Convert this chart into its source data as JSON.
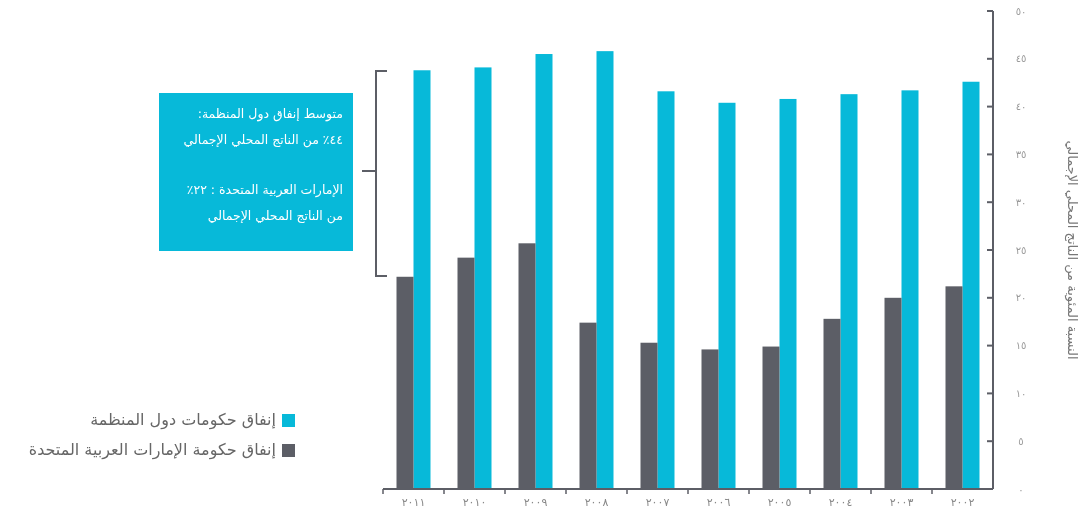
{
  "chart_data": {
    "type": "bar",
    "ylabel": "النسبة المئوية من الناتج المحلي الإجمالي",
    "categories": [
      "٢٠١١",
      "٢٠١٠",
      "٢٠٠٩",
      "٢٠٠٨",
      "٢٠٠٧",
      "٢٠٠٦",
      "٢٠٠٥",
      "٢٠٠٤",
      "٢٠٠٣",
      "٢٠٠٢"
    ],
    "series": [
      {
        "name": "إنفاق حكومات دول المنظمة",
        "color": "#07b9d9",
        "values": [
          43.8,
          44.1,
          45.5,
          45.8,
          41.6,
          40.4,
          40.8,
          41.3,
          41.7,
          42.6
        ]
      },
      {
        "name": "إنفاق حكومة الإمارات العربية المتحدة",
        "color": "#5c5e66",
        "values": [
          22.2,
          24.2,
          25.7,
          17.4,
          15.3,
          14.6,
          14.9,
          17.8,
          20.0,
          21.2
        ]
      }
    ],
    "ylim": [
      0,
      50
    ],
    "yticks": [
      {
        "value": 0,
        "label": "٠"
      },
      {
        "value": 5,
        "label": "٥"
      },
      {
        "value": 10,
        "label": "١٠"
      },
      {
        "value": 15,
        "label": "١٥"
      },
      {
        "value": 20,
        "label": "٢٠"
      },
      {
        "value": 25,
        "label": "٢٥"
      },
      {
        "value": 30,
        "label": "٣٠"
      },
      {
        "value": 35,
        "label": "٣٥"
      },
      {
        "value": 40,
        "label": "٤٠"
      },
      {
        "value": 45,
        "label": "٤٥"
      },
      {
        "value": 50,
        "label": "٥٠"
      }
    ],
    "legend": "bottom left",
    "annotations": [
      "متوسط إنفاق دول المنظمة:\n٤٤٪ من الناتج المحلي الإجمالي",
      "الإمارات العربية المتحدة : ٢٢٪\nمن الناتج المحلي الإجمالي"
    ]
  }
}
